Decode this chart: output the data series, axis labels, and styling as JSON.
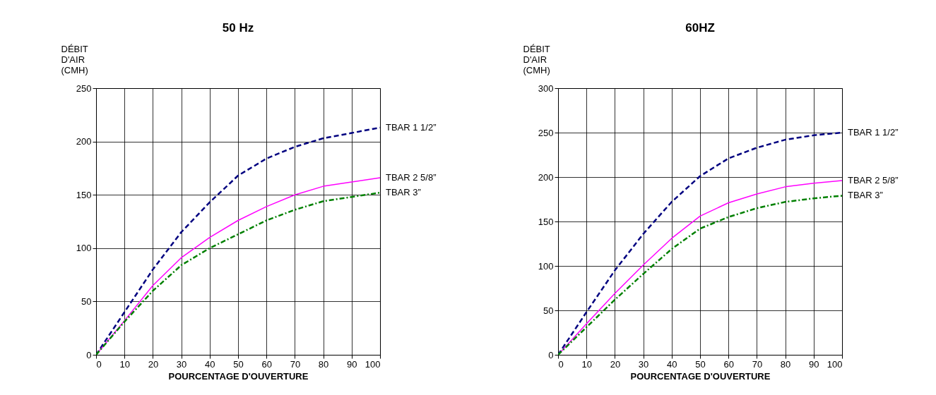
{
  "chart_data": [
    {
      "type": "line",
      "title": "50 Hz",
      "xlabel": "POURCENTAGE D'OUVERTURE",
      "ylabel": "DÉBIT D'AIR (CMH)",
      "x": [
        0,
        10,
        20,
        30,
        40,
        50,
        60,
        70,
        80,
        90,
        100
      ],
      "xlim": [
        0,
        100
      ],
      "xticks": [
        0,
        10,
        20,
        30,
        40,
        50,
        60,
        70,
        80,
        90,
        100
      ],
      "ylim": [
        0,
        250
      ],
      "yticks": [
        0,
        50,
        100,
        150,
        200,
        250
      ],
      "grid": true,
      "legend": false,
      "marker": "none",
      "series": [
        {
          "name": "TBAR 1 1/2”",
          "color": "#000080",
          "line_style": "dashed",
          "values": [
            0,
            40,
            80,
            115,
            143,
            168,
            184,
            195,
            203,
            208,
            213
          ]
        },
        {
          "name": "TBAR 2 5/8”",
          "color": "#ff00ff",
          "line_style": "solid",
          "values": [
            0,
            32,
            65,
            91,
            110,
            126,
            139,
            150,
            158,
            162,
            166
          ]
        },
        {
          "name": "TBAR 3”",
          "color": "#008000",
          "line_style": "dashdot",
          "values": [
            0,
            31,
            60,
            84,
            100,
            113,
            126,
            136,
            144,
            148,
            152
          ]
        }
      ]
    },
    {
      "type": "line",
      "title": "60HZ",
      "xlabel": "POURCENTAGE D'OUVERTURE",
      "ylabel": "DÉBIT D'AIR (CMH)",
      "x": [
        0,
        10,
        20,
        30,
        40,
        50,
        60,
        70,
        80,
        90,
        100
      ],
      "xlim": [
        0,
        100
      ],
      "xticks": [
        0,
        10,
        20,
        30,
        40,
        50,
        60,
        70,
        80,
        90,
        100
      ],
      "ylim": [
        0,
        300
      ],
      "yticks": [
        0,
        50,
        100,
        150,
        200,
        250,
        300
      ],
      "grid": true,
      "legend": false,
      "marker": "none",
      "series": [
        {
          "name": "TBAR 1 1/2”",
          "color": "#000080",
          "line_style": "dashed",
          "values": [
            0,
            48,
            95,
            136,
            172,
            201,
            221,
            233,
            242,
            247,
            250
          ]
        },
        {
          "name": "TBAR 2 5/8”",
          "color": "#ff00ff",
          "line_style": "solid",
          "values": [
            0,
            35,
            69,
            101,
            131,
            156,
            171,
            181,
            189,
            193,
            196
          ]
        },
        {
          "name": "TBAR 3”",
          "color": "#008000",
          "line_style": "dashdot",
          "values": [
            0,
            31,
            62,
            91,
            119,
            142,
            155,
            165,
            172,
            176,
            179
          ]
        }
      ]
    }
  ]
}
